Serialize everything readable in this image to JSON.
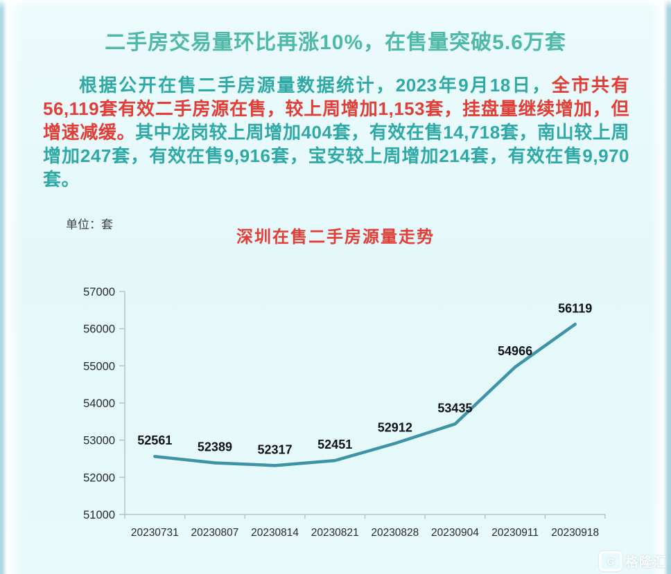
{
  "page": {
    "title": "二手房交易量环比再涨10%，在售量突破5.6万套",
    "paragraph": {
      "segments": [
        {
          "text": "根据公开在售二手房源量数据统计，2023年9月18日，",
          "color": "#2fa9a5"
        },
        {
          "text": "全市共有56,119套有效二手房源在售，较上周增加1,153套，挂盘量继续增加，但增速减缓。",
          "color": "#e23d36"
        },
        {
          "text": "其中龙岗较上周增加404套，有效在售14,718套，南山较上周增加247套，有效在售9,916套，宝安较上周增加214套，有效在售9,970套。",
          "color": "#2fa9a5"
        }
      ]
    },
    "watermark": {
      "logo": "G",
      "text": "格隆汇"
    }
  },
  "colors": {
    "background": "#e6f9fb",
    "title_green": "#4db9a6",
    "body_teal": "#2fa9a5",
    "accent_red": "#e23d36",
    "line_teal": "#3e93a6",
    "axis_gray": "#b5c3c9",
    "tick_text": "#26292c"
  },
  "chart_data": {
    "type": "line",
    "title": "深圳在售二手房源量走势",
    "unit_label": "单位：套",
    "categories": [
      "20230731",
      "20230807",
      "20230814",
      "20230821",
      "20230828",
      "20230904",
      "20230911",
      "20230918"
    ],
    "values": [
      52561,
      52389,
      52317,
      52451,
      52912,
      53435,
      54966,
      56119
    ],
    "xlabel": "",
    "ylabel": "",
    "ylim": [
      51000,
      57000
    ],
    "ytick_step": 1000,
    "yticks": [
      51000,
      52000,
      53000,
      54000,
      55000,
      56000,
      57000
    ],
    "grid": false,
    "legend": "none",
    "line_color": "#3e93a6",
    "data_labels": true
  }
}
